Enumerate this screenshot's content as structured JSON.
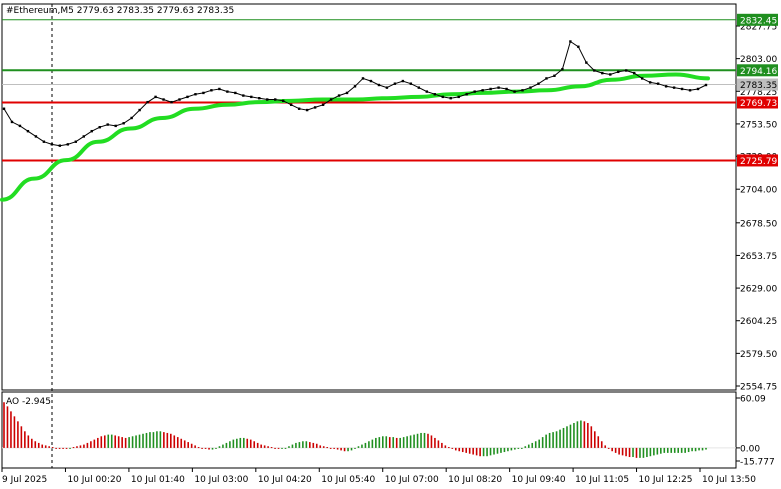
{
  "chart_data": [
    {
      "type": "line",
      "header": "#Ethereum,M5  2779.63 2783.35 2779.63 2783.35",
      "ylim": [
        2554.75,
        2840
      ],
      "y_ticks": [
        2827.75,
        2803.0,
        2778.25,
        2753.5,
        2729.0,
        2704.0,
        2678.5,
        2653.75,
        2629.0,
        2604.25,
        2579.5,
        2554.75
      ],
      "y_tick_labels": [
        "2827.75",
        "2803.00",
        "2778.25",
        "2753.50",
        "2729.00",
        "2704.00",
        "2678.50",
        "2653.75",
        "2629.00",
        "2604.25",
        "2579.50",
        "2554.75"
      ],
      "x_tick_labels": [
        "9 Jul 2025",
        "10 Jul 00:20",
        "10 Jul 01:40",
        "10 Jul 03:00",
        "10 Jul 04:20",
        "10 Jul 05:40",
        "10 Jul 07:00",
        "10 Jul 08:20",
        "10 Jul 09:40",
        "10 Jul 11:05",
        "10 Jul 12:25",
        "10 Jul 13:50"
      ],
      "levels": [
        {
          "value": 2832.45,
          "label": "2832.45",
          "color": "#1f8f1f",
          "width": 1
        },
        {
          "value": 2794.16,
          "label": "2794.16",
          "color": "#1f8f1f",
          "width": 2
        },
        {
          "value": 2783.35,
          "label": "2783.35",
          "color": "#bfbfbf",
          "width": 1
        },
        {
          "value": 2769.73,
          "label": "2769.73",
          "color": "#e00000",
          "width": 2
        },
        {
          "value": 2725.79,
          "label": "2725.79",
          "color": "#e00000",
          "width": 2
        }
      ],
      "price_series": {
        "color": "#000000",
        "values": [
          2765,
          2755,
          2752,
          2748,
          2744,
          2740,
          2738,
          2737,
          2738,
          2740,
          2744,
          2748,
          2751,
          2753,
          2752,
          2754,
          2758,
          2764,
          2770,
          2774,
          2772,
          2770,
          2772,
          2774,
          2776,
          2777,
          2779,
          2780,
          2778,
          2777,
          2775,
          2774,
          2773,
          2772,
          2772,
          2771,
          2768,
          2765,
          2764,
          2766,
          2768,
          2772,
          2775,
          2777,
          2782,
          2788,
          2786,
          2783,
          2781,
          2784,
          2786,
          2784,
          2781,
          2778,
          2776,
          2774,
          2773,
          2774,
          2776,
          2778,
          2779,
          2780,
          2781,
          2780,
          2778,
          2779,
          2781,
          2784,
          2788,
          2790,
          2795,
          2816,
          2812,
          2800,
          2794,
          2792,
          2791,
          2793,
          2794,
          2792,
          2788,
          2785,
          2784,
          2782,
          2781,
          2780,
          2779,
          2780,
          2783
        ]
      },
      "ma_series": {
        "color": "#22dd22",
        "values": [
          2696,
          2712,
          2726,
          2740,
          2750,
          2758,
          2765,
          2768,
          2770,
          2771,
          2772,
          2772,
          2773,
          2774,
          2776,
          2777,
          2778,
          2779,
          2782,
          2787,
          2790,
          2791,
          2788
        ]
      }
    },
    {
      "type": "bar",
      "title": "AO -2.945",
      "ylim": [
        -15.777,
        60.09
      ],
      "y_tick_labels": [
        "60.09",
        "0.00",
        "-15.777"
      ],
      "positive_color": "#cc0000",
      "negative_color": "#1f8f1f",
      "values": [
        55,
        50,
        44,
        38,
        32,
        26,
        20,
        15,
        11,
        8,
        6,
        4,
        3,
        2,
        1,
        0,
        0,
        0,
        -1,
        -1,
        1,
        2,
        3,
        4,
        6,
        8,
        10,
        12,
        14,
        15,
        16,
        16,
        15,
        14,
        13,
        12,
        13,
        14,
        15,
        16,
        17,
        18,
        19,
        19,
        20,
        20,
        19,
        18,
        17,
        15,
        13,
        11,
        9,
        7,
        5,
        3,
        1,
        0,
        -1,
        -2,
        -2,
        0,
        2,
        4,
        6,
        8,
        10,
        11,
        12,
        12,
        11,
        10,
        8,
        6,
        4,
        3,
        2,
        1,
        0,
        -1,
        -1,
        0,
        2,
        4,
        6,
        7,
        8,
        8,
        7,
        6,
        5,
        3,
        2,
        1,
        0,
        -1,
        -2,
        -3,
        -4,
        -4,
        -3,
        0,
        2,
        4,
        6,
        8,
        10,
        12,
        13,
        14,
        14,
        13,
        13,
        12,
        12,
        13,
        14,
        15,
        16,
        17,
        18,
        18,
        17,
        15,
        12,
        9,
        6,
        3,
        1,
        -1,
        -3,
        -4,
        -5,
        -6,
        -7,
        -8,
        -9,
        -10,
        -10,
        -10,
        -9,
        -8,
        -7,
        -6,
        -5,
        -4,
        -3,
        -2,
        -1,
        0,
        2,
        4,
        6,
        8,
        10,
        13,
        16,
        18,
        19,
        20,
        22,
        24,
        26,
        28,
        30,
        32,
        33,
        32,
        30,
        26,
        20,
        14,
        8,
        3,
        -1,
        -4,
        -6,
        -8,
        -9,
        -10,
        -11,
        -11,
        -12,
        -12,
        -12,
        -11,
        -10,
        -9,
        -8,
        -7,
        -6,
        -6,
        -6,
        -6,
        -6,
        -6,
        -6,
        -5,
        -4,
        -4,
        -3,
        -3,
        -2
      ]
    }
  ]
}
